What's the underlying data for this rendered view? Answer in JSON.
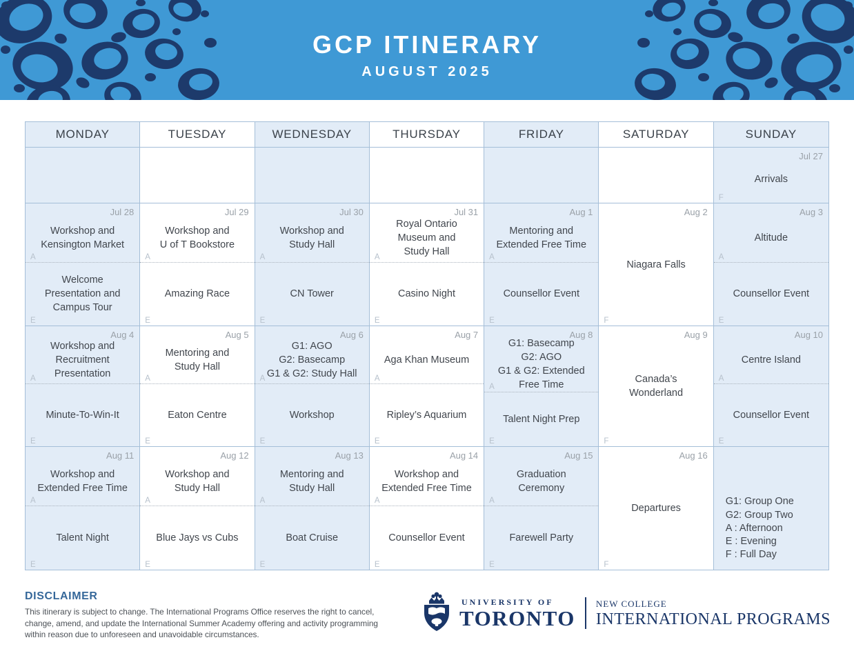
{
  "banner": {
    "title": "GCP ITINERARY",
    "subtitle": "AUGUST 2025",
    "background_color": "#3F99D5",
    "pattern_color": "#1D3A6B"
  },
  "markers": {
    "afternoon": "A",
    "evening": "E",
    "full_day": "F"
  },
  "calendar": {
    "day_headers": [
      "MONDAY",
      "TUESDAY",
      "WEDNESDAY",
      "THURSDAY",
      "FRIDAY",
      "SATURDAY",
      "SUNDAY"
    ],
    "weeks": [
      {
        "cells": [
          {
            "type": "empty"
          },
          {
            "type": "empty"
          },
          {
            "type": "empty"
          },
          {
            "type": "empty"
          },
          {
            "type": "empty"
          },
          {
            "type": "empty"
          },
          {
            "type": "full",
            "date": "Jul 27",
            "label": "Arrivals"
          }
        ]
      },
      {
        "cells": [
          {
            "type": "split",
            "date": "Jul 28",
            "afternoon": "Workshop and\nKensington Market",
            "evening": "Welcome\nPresentation and\nCampus Tour"
          },
          {
            "type": "split",
            "date": "Jul 29",
            "afternoon": "Workshop and\nU of T Bookstore",
            "evening": "Amazing Race"
          },
          {
            "type": "split",
            "date": "Jul 30",
            "afternoon": "Workshop and\nStudy Hall",
            "evening": "CN Tower"
          },
          {
            "type": "split",
            "date": "Jul 31",
            "afternoon": "Royal Ontario\nMuseum and\nStudy Hall",
            "evening": "Casino Night"
          },
          {
            "type": "split",
            "date": "Aug 1",
            "afternoon": "Mentoring and\nExtended Free Time",
            "evening": "Counsellor Event"
          },
          {
            "type": "full",
            "date": "Aug 2",
            "label": "Niagara Falls"
          },
          {
            "type": "split",
            "date": "Aug 3",
            "afternoon": "Altitude",
            "evening": "Counsellor Event"
          }
        ]
      },
      {
        "cells": [
          {
            "type": "split",
            "date": "Aug 4",
            "afternoon": "Workshop and\nRecruitment\nPresentation",
            "evening": "Minute-To-Win-It"
          },
          {
            "type": "split",
            "date": "Aug 5",
            "afternoon": "Mentoring and\nStudy Hall",
            "evening": "Eaton Centre"
          },
          {
            "type": "split",
            "date": "Aug 6",
            "afternoon": "G1: AGO\nG2: Basecamp\nG1 & G2: Study Hall",
            "evening": "Workshop"
          },
          {
            "type": "split",
            "date": "Aug 7",
            "afternoon": "Aga Khan Museum",
            "evening": "Ripley’s Aquarium"
          },
          {
            "type": "split",
            "date": "Aug 8",
            "afternoon": "G1: Basecamp\nG2: AGO\nG1 & G2: Extended\nFree Time",
            "evening": "Talent Night Prep"
          },
          {
            "type": "full",
            "date": "Aug 9",
            "label": "Canada’s\nWonderland"
          },
          {
            "type": "split",
            "date": "Aug 10",
            "afternoon": "Centre Island",
            "evening": "Counsellor Event"
          }
        ]
      },
      {
        "cells": [
          {
            "type": "split",
            "date": "Aug 11",
            "afternoon": "Workshop and\nExtended Free Time",
            "evening": "Talent Night"
          },
          {
            "type": "split",
            "date": "Aug 12",
            "afternoon": "Workshop and\nStudy Hall",
            "evening": "Blue Jays vs Cubs"
          },
          {
            "type": "split",
            "date": "Aug 13",
            "afternoon": "Mentoring and\nStudy Hall",
            "evening": "Boat Cruise"
          },
          {
            "type": "split",
            "date": "Aug 14",
            "afternoon": "Workshop and\nExtended Free Time",
            "evening": "Counsellor Event"
          },
          {
            "type": "split",
            "date": "Aug 15",
            "afternoon": "Graduation\nCeremony",
            "evening": "Farewell Party"
          },
          {
            "type": "full",
            "date": "Aug 16",
            "label": "Departures"
          },
          {
            "type": "legend",
            "lines": [
              "G1: Group One",
              "G2: Group Two",
              "A : Afternoon",
              "E : Evening",
              "F : Full Day"
            ]
          }
        ]
      }
    ]
  },
  "disclaimer": {
    "heading": "DISCLAIMER",
    "body": "This itinerary is subject to change. The International Programs Office reserves the right to cancel, change, amend, and update the International Summer Academy offering and activity programming within reason due to unforeseen and unavoidable circumstances."
  },
  "footer_logo": {
    "university_small": "UNIVERSITY OF",
    "university_large": "TORONTO",
    "college_small": "NEW COLLEGE",
    "college_large": "INTERNATIONAL PROGRAMS"
  },
  "colors": {
    "cell_shade": "#E2ECF7",
    "grid_border": "#A4BED8",
    "event_text": "#41464D",
    "date_text": "#9AA1A8",
    "marker_text": "#B7C1CC",
    "logo_navy": "#1A3668",
    "disclaimer_heading": "#36689A"
  }
}
